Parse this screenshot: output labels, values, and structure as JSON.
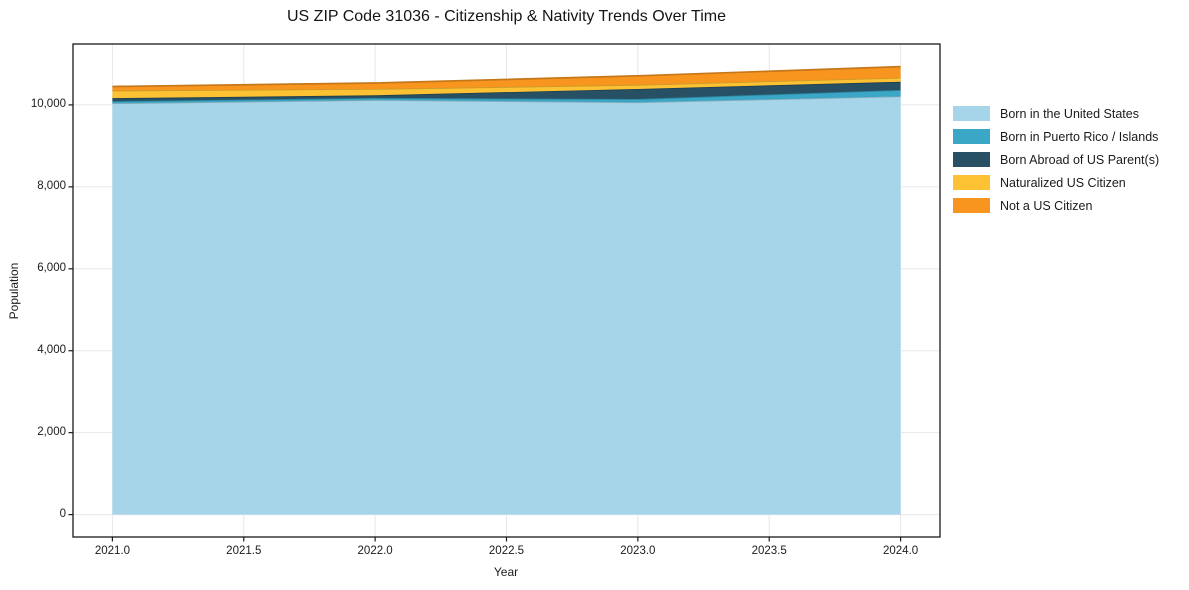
{
  "chart_data": {
    "type": "area",
    "stacked": true,
    "title": "US ZIP Code 31036 - Citizenship & Nativity Trends Over Time",
    "xlabel": "Year",
    "ylabel": "Population",
    "x": [
      2021,
      2022,
      2023,
      2024
    ],
    "series": [
      {
        "name": "Born in the United States",
        "color": "#A6D4E8",
        "values": [
          10040,
          10120,
          10065,
          10210
        ]
      },
      {
        "name": "Born in Puerto Rico / Islands",
        "color": "#39A7C5",
        "values": [
          50,
          50,
          80,
          155
        ]
      },
      {
        "name": "Born Abroad of US Parent(s)",
        "color": "#275064",
        "values": [
          75,
          65,
          245,
          200
        ]
      },
      {
        "name": "Naturalized US Citizen",
        "color": "#FDC234",
        "values": [
          185,
          155,
          100,
          100
        ]
      },
      {
        "name": "Not a US Citizen",
        "color": "#F7951F",
        "values": [
          100,
          145,
          220,
          270
        ]
      }
    ],
    "totals": [
      10450,
      10535,
      10710,
      10935
    ],
    "xlim": [
      2020.85,
      2024.15
    ],
    "ylim": [
      -547,
      11487
    ],
    "xticks": {
      "values": [
        2021.0,
        2021.5,
        2022.0,
        2022.5,
        2023.0,
        2023.5,
        2024.0
      ],
      "labels": [
        "2021.0",
        "2021.5",
        "2022.0",
        "2022.5",
        "2023.0",
        "2023.5",
        "2024.0"
      ]
    },
    "yticks": {
      "values": [
        0,
        2000,
        4000,
        6000,
        8000,
        10000
      ],
      "labels": [
        "0",
        "2,000",
        "4,000",
        "6,000",
        "8,000",
        "10,000"
      ]
    },
    "grid": true,
    "legend_position": "right-outside"
  },
  "colors": {
    "background": "#ffffff",
    "grid": "#e8e8ec",
    "spine": "#1a1a1a",
    "tick_text": "#1b1b1b",
    "title_text": "#151515"
  }
}
